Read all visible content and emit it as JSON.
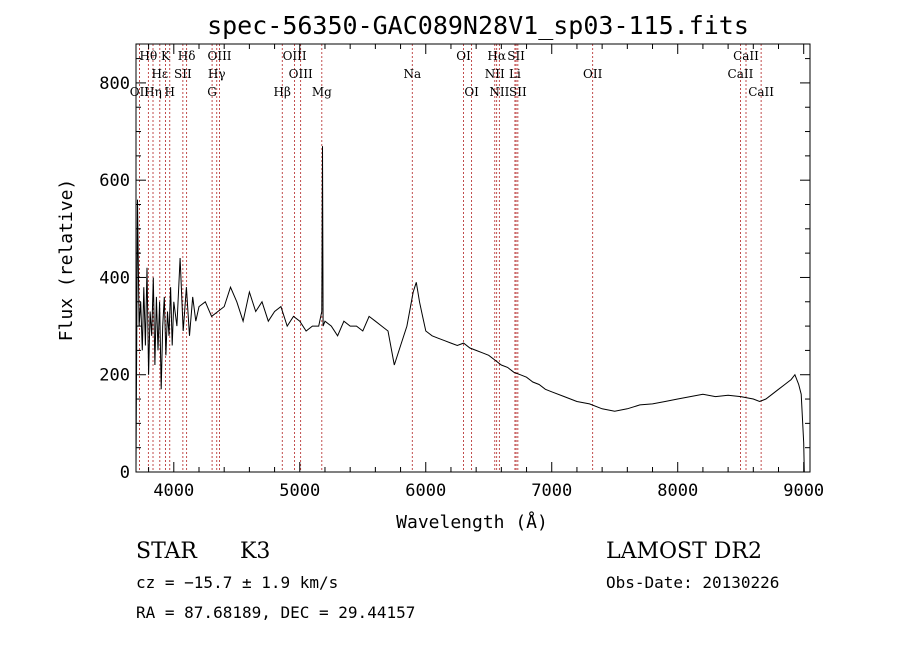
{
  "chart_data": {
    "type": "line",
    "title": "spec-56350-GAC089N28V1_sp03-115.fits",
    "xlabel": "Wavelength (Å)",
    "ylabel": "Flux (relative)",
    "xlim": [
      3700,
      9050
    ],
    "ylim": [
      0,
      880
    ],
    "xticks": [
      4000,
      5000,
      6000,
      7000,
      8000,
      9000
    ],
    "yticks": [
      0,
      200,
      400,
      600,
      800
    ],
    "grid": false,
    "series": [
      {
        "x": [
          3700,
          3712,
          3725,
          3737,
          3750,
          3762,
          3775,
          3787,
          3800,
          3812,
          3825,
          3837,
          3850,
          3862,
          3875,
          3887,
          3900,
          3912,
          3925,
          3937,
          3950,
          3962,
          3975,
          3987,
          4000,
          4025,
          4050,
          4075,
          4100,
          4125,
          4150,
          4175,
          4200,
          4250,
          4300,
          4350,
          4400,
          4450,
          4500,
          4550,
          4600,
          4650,
          4700,
          4750,
          4800,
          4850,
          4900,
          4950,
          5000,
          5050,
          5100,
          5150,
          5175,
          5180,
          5185,
          5200,
          5250,
          5300,
          5350,
          5400,
          5450,
          5500,
          5550,
          5600,
          5650,
          5700,
          5750,
          5800,
          5850,
          5900,
          5925,
          5950,
          5975,
          6000,
          6050,
          6100,
          6150,
          6200,
          6250,
          6300,
          6350,
          6400,
          6450,
          6500,
          6550,
          6600,
          6650,
          6700,
          6750,
          6800,
          6850,
          6900,
          6950,
          7000,
          7100,
          7200,
          7300,
          7400,
          7500,
          7600,
          7700,
          7800,
          7900,
          8000,
          8100,
          8200,
          8300,
          8400,
          8500,
          8600,
          8650,
          8700,
          8750,
          8800,
          8850,
          8900,
          8930,
          8960,
          8980,
          9000,
          9005
        ],
        "values": [
          10,
          560,
          300,
          350,
          250,
          380,
          260,
          420,
          200,
          330,
          280,
          400,
          220,
          360,
          250,
          350,
          170,
          300,
          360,
          240,
          330,
          280,
          380,
          260,
          350,
          300,
          440,
          290,
          380,
          280,
          360,
          310,
          340,
          350,
          320,
          330,
          340,
          380,
          350,
          310,
          370,
          330,
          350,
          310,
          330,
          340,
          300,
          320,
          310,
          290,
          300,
          300,
          330,
          670,
          300,
          310,
          300,
          280,
          310,
          300,
          300,
          290,
          320,
          310,
          300,
          290,
          220,
          260,
          300,
          370,
          390,
          350,
          320,
          290,
          280,
          275,
          270,
          265,
          260,
          265,
          255,
          250,
          245,
          240,
          230,
          220,
          215,
          205,
          200,
          195,
          185,
          180,
          170,
          165,
          155,
          145,
          140,
          130,
          125,
          130,
          138,
          140,
          145,
          150,
          155,
          160,
          155,
          158,
          155,
          150,
          145,
          150,
          160,
          170,
          180,
          190,
          200,
          180,
          160,
          60,
          0
        ]
      }
    ],
    "line_markers": [
      {
        "name": "Hθ",
        "wl": 3798,
        "row": 0
      },
      {
        "name": "K",
        "wl": 3934,
        "row": 0
      },
      {
        "name": "Hδ",
        "wl": 4102,
        "row": 0
      },
      {
        "name": "OIII",
        "wl": 4363,
        "row": 0
      },
      {
        "name": "OIII",
        "wl": 4959,
        "row": 0
      },
      {
        "name": "OI",
        "wl": 6300,
        "row": 0
      },
      {
        "name": "Hα",
        "wl": 6563,
        "row": 0
      },
      {
        "name": "SII",
        "wl": 6717,
        "row": 0
      },
      {
        "name": "CaII",
        "wl": 8542,
        "row": 0
      },
      {
        "name": "Hε",
        "wl": 3889,
        "row": 1
      },
      {
        "name": "SII",
        "wl": 4072,
        "row": 1
      },
      {
        "name": "Hγ",
        "wl": 4341,
        "row": 1
      },
      {
        "name": "OIII",
        "wl": 5007,
        "row": 1
      },
      {
        "name": "Na",
        "wl": 5893,
        "row": 1
      },
      {
        "name": "NII",
        "wl": 6548,
        "row": 1
      },
      {
        "name": "Li",
        "wl": 6708,
        "row": 1
      },
      {
        "name": "OII",
        "wl": 7325,
        "row": 1
      },
      {
        "name": "CaII",
        "wl": 8498,
        "row": 1
      },
      {
        "name": "OII",
        "wl": 3727,
        "row": 2
      },
      {
        "name": "Hη",
        "wl": 3835,
        "row": 2
      },
      {
        "name": "H",
        "wl": 3968,
        "row": 2
      },
      {
        "name": "G",
        "wl": 4304,
        "row": 2
      },
      {
        "name": "Hβ",
        "wl": 4861,
        "row": 2
      },
      {
        "name": "Mg",
        "wl": 5175,
        "row": 2
      },
      {
        "name": "OI",
        "wl": 6364,
        "row": 2
      },
      {
        "name": "NII",
        "wl": 6584,
        "row": 2
      },
      {
        "name": "SII",
        "wl": 6731,
        "row": 2
      },
      {
        "name": "CaII",
        "wl": 8662,
        "row": 2
      }
    ]
  },
  "info": {
    "class": "STAR",
    "subclass": "K3",
    "cz": "cz = −15.7 ± 1.9 km/s",
    "radec": "RA =  87.68189, DEC =  29.44157",
    "survey": "LAMOST DR2",
    "obsdate": "Obs-Date: 20130226"
  }
}
